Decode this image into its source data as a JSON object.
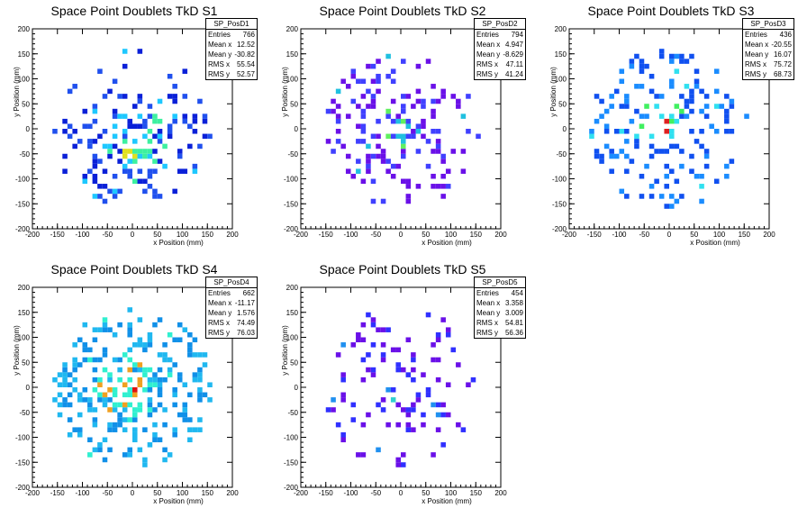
{
  "chart_data": [
    {
      "type": "heatmap",
      "title": "Space Point Doublets TkD S1",
      "xlabel": "x Position (mm)",
      "ylabel": "y Position (mm)",
      "xlim": [
        -200,
        200
      ],
      "ylim": [
        -200,
        200
      ],
      "xticks": [
        "-200",
        "-150",
        "-100",
        "-50",
        "0",
        "50",
        "100",
        "150",
        "200"
      ],
      "yticks": [
        "-200",
        "-150",
        "-100",
        "-50",
        "0",
        "50",
        "100",
        "150",
        "200"
      ],
      "palette": [
        "#2050ee",
        "#0a20d8",
        "#1ec8ff",
        "#3cf0a0",
        "#e0e020"
      ],
      "stats": {
        "name": "SP_PosD1",
        "rows": [
          {
            "k": "Entries",
            "v": "766"
          },
          {
            "k": "Mean x",
            "v": "12.52"
          },
          {
            "k": "Mean y",
            "v": "-30.82"
          },
          {
            "k": "RMS x",
            "v": "55.54"
          },
          {
            "k": "RMS y",
            "v": "52.57"
          }
        ]
      },
      "cluster": {
        "x": 10,
        "y": -40,
        "spread": 75,
        "density": 0.45,
        "core": 35
      },
      "seed": 11
    },
    {
      "type": "heatmap",
      "title": "Space Point Doublets TkD S2",
      "xlabel": "x Position (mm)",
      "ylabel": "y Position (mm)",
      "xlim": [
        -200,
        200
      ],
      "ylim": [
        -200,
        200
      ],
      "xticks": [
        "-200",
        "-150",
        "-100",
        "-50",
        "0",
        "50",
        "100",
        "150",
        "200"
      ],
      "yticks": [
        "-200",
        "-150",
        "-100",
        "-50",
        "0",
        "50",
        "100",
        "150",
        "200"
      ],
      "palette": [
        "#6a10e8",
        "#4040ff",
        "#20c0e0",
        "#60f060",
        "#e02020"
      ],
      "stats": {
        "name": "SP_PosD2",
        "rows": [
          {
            "k": "Entries",
            "v": "794"
          },
          {
            "k": "Mean x",
            "v": "4.947"
          },
          {
            "k": "Mean y",
            "v": "-8.629"
          },
          {
            "k": "RMS x",
            "v": "47.11"
          },
          {
            "k": "RMS y",
            "v": "41.24"
          }
        ]
      },
      "cluster": {
        "x": 0,
        "y": 0,
        "spread": 85,
        "density": 0.22,
        "core": 20
      },
      "seed": 23
    },
    {
      "type": "heatmap",
      "title": "Space Point Doublets TkD S3",
      "xlabel": "x Position (mm)",
      "ylabel": "y Position (mm)",
      "xlim": [
        -200,
        200
      ],
      "ylim": [
        -200,
        200
      ],
      "xticks": [
        "-200",
        "-150",
        "-100",
        "-50",
        "0",
        "50",
        "100",
        "150",
        "200"
      ],
      "yticks": [
        "-200",
        "-150",
        "-100",
        "-50",
        "0",
        "50",
        "100",
        "150",
        "200"
      ],
      "palette": [
        "#1050f0",
        "#1a8cff",
        "#30e0f0",
        "#40f060",
        "#e02020"
      ],
      "stats": {
        "name": "SP_PosD3",
        "rows": [
          {
            "k": "Entries",
            "v": "436"
          },
          {
            "k": "Mean x",
            "v": "-20.55"
          },
          {
            "k": "Mean y",
            "v": "16.07"
          },
          {
            "k": "RMS x",
            "v": "75.72"
          },
          {
            "k": "RMS y",
            "v": "68.73"
          }
        ]
      },
      "cluster": {
        "x": -20,
        "y": 10,
        "spread": 130,
        "density": 0.2,
        "core": 25
      },
      "seed": 37
    },
    {
      "type": "heatmap",
      "title": "Space Point Doublets TkD S4",
      "xlabel": "x Position (mm)",
      "ylabel": "y Position (mm)",
      "xlim": [
        -200,
        200
      ],
      "ylim": [
        -200,
        200
      ],
      "xticks": [
        "-200",
        "-150",
        "-100",
        "-50",
        "0",
        "50",
        "100",
        "150",
        "200"
      ],
      "yticks": [
        "-200",
        "-150",
        "-100",
        "-50",
        "0",
        "50",
        "100",
        "150",
        "200"
      ],
      "palette": [
        "#1090e8",
        "#20b8f0",
        "#30f0d0",
        "#f0a020",
        "#e01010"
      ],
      "stats": {
        "name": "SP_PosD4",
        "rows": [
          {
            "k": "Entries",
            "v": "662"
          },
          {
            "k": "Mean x",
            "v": "-11.17"
          },
          {
            "k": "Mean y",
            "v": "1.576"
          },
          {
            "k": "RMS x",
            "v": "74.49"
          },
          {
            "k": "RMS y",
            "v": "76.03"
          }
        ]
      },
      "cluster": {
        "x": -10,
        "y": 0,
        "spread": 140,
        "density": 0.32,
        "core": 30
      },
      "seed": 53
    },
    {
      "type": "heatmap",
      "title": "Space Point Doublets TkD S5",
      "xlabel": "x Position (mm)",
      "ylabel": "y Position (mm)",
      "xlim": [
        -200,
        200
      ],
      "ylim": [
        -200,
        200
      ],
      "xticks": [
        "-200",
        "-150",
        "-100",
        "-50",
        "0",
        "50",
        "100",
        "150",
        "200"
      ],
      "yticks": [
        "-200",
        "-150",
        "-100",
        "-50",
        "0",
        "50",
        "100",
        "150",
        "200"
      ],
      "palette": [
        "#6a10e8",
        "#3030ff",
        "#2090f0",
        "#30d0d0",
        "#e03030"
      ],
      "stats": {
        "name": "SP_PosD5",
        "rows": [
          {
            "k": "Entries",
            "v": "454"
          },
          {
            "k": "Mean x",
            "v": "3.358"
          },
          {
            "k": "Mean y",
            "v": "3.009"
          },
          {
            "k": "RMS x",
            "v": "54.81"
          },
          {
            "k": "RMS y",
            "v": "56.36"
          }
        ]
      },
      "cluster": {
        "x": 0,
        "y": 0,
        "spread": 110,
        "density": 0.13,
        "core": 15
      },
      "seed": 71
    }
  ]
}
